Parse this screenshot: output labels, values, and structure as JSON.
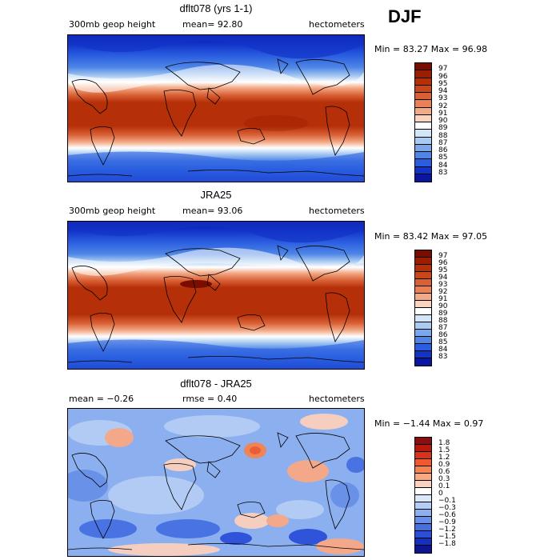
{
  "season": "DJF",
  "panels": [
    {
      "title": "dflt078 (yrs 1-1)",
      "left_label": "300mb geop height",
      "mean_label": "mean=  92.80",
      "units": "hectometers",
      "minmax": "Min =  83.27 Max =  96.98",
      "colorbar": {
        "labels": [
          "97",
          "96",
          "95",
          "94",
          "93",
          "92",
          "91",
          "90",
          "89",
          "88",
          "87",
          "86",
          "85",
          "84",
          "83"
        ],
        "colors": [
          "#7a0d00",
          "#9c1d00",
          "#b52f08",
          "#c9451a",
          "#d96035",
          "#e88157",
          "#f2a986",
          "#f9d4bf",
          "#ffffff",
          "#d2e6f8",
          "#a9cbf2",
          "#7aa8ec",
          "#4f86e6",
          "#2a5ee0",
          "#1233c8",
          "#0a16a0"
        ]
      }
    },
    {
      "title": "JRA25",
      "left_label": "300mb geop height",
      "mean_label": "mean=  93.06",
      "units": "hectometers",
      "minmax": "Min =  83.42 Max =  97.05",
      "colorbar": {
        "labels": [
          "97",
          "96",
          "95",
          "94",
          "93",
          "92",
          "91",
          "90",
          "89",
          "88",
          "87",
          "86",
          "85",
          "84",
          "83"
        ],
        "colors": [
          "#7a0d00",
          "#9c1d00",
          "#b52f08",
          "#c9451a",
          "#d96035",
          "#e88157",
          "#f2a986",
          "#f9d4bf",
          "#ffffff",
          "#d2e6f8",
          "#a9cbf2",
          "#7aa8ec",
          "#4f86e6",
          "#2a5ee0",
          "#1233c8",
          "#0a16a0"
        ]
      }
    },
    {
      "title": "dflt078 - JRA25",
      "left_label": "mean =  −0.26",
      "mean_label": "rmse =   0.40",
      "units": "hectometers",
      "minmax": "Min =  −1.44 Max =   0.97",
      "colorbar": {
        "labels": [
          "1.8",
          "1.5",
          "1.2",
          "0.9",
          "0.6",
          "0.3",
          "0.1",
          "0",
          "−0.1",
          "−0.3",
          "−0.6",
          "−0.9",
          "−1.2",
          "−1.5",
          "−1.8"
        ],
        "colors": [
          "#8b0d0d",
          "#b51a0d",
          "#d8321a",
          "#ee5a2e",
          "#f5834f",
          "#f9a884",
          "#fbd0be",
          "#ffffff",
          "#dbe8fb",
          "#b4cdf6",
          "#8cb0ef",
          "#6890e8",
          "#4670e2",
          "#2b50d8",
          "#1530c0",
          "#0b1690"
        ]
      }
    }
  ]
}
